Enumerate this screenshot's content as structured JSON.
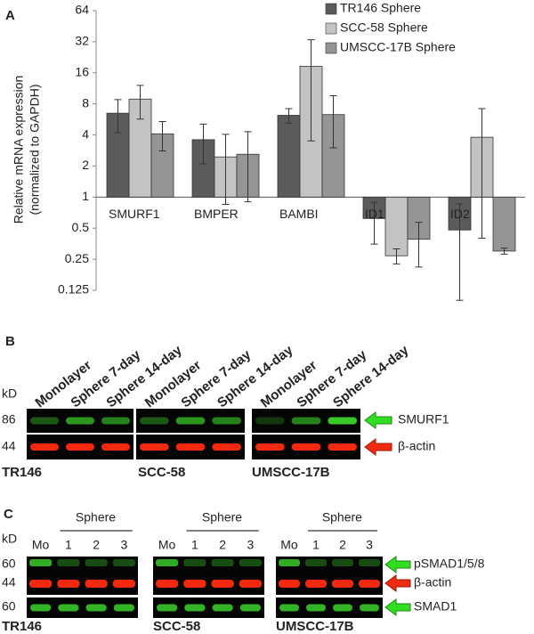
{
  "chart_data": {
    "type": "bar",
    "panel_label": "A",
    "ylabel": [
      "Relative mRNA expression",
      "(normalized to GAPDH)"
    ],
    "categories": [
      "SMURF1",
      "BMPER",
      "BAMBI",
      "ID1",
      "ID2"
    ],
    "series": [
      {
        "name": "TR146 Sphere",
        "color": "#5b5b5b",
        "values": [
          6.5,
          3.6,
          6.2,
          0.62,
          0.48
        ],
        "errors": [
          2.3,
          1.5,
          1.0,
          0.27,
          0.38
        ]
      },
      {
        "name": "SCC-58 Sphere",
        "color": "#c3c3c3",
        "values": [
          8.9,
          2.45,
          18.5,
          0.27,
          3.8
        ],
        "errors": [
          3.2,
          1.6,
          15,
          0.045,
          3.4
        ]
      },
      {
        "name": "UMSCC-17B Sphere",
        "color": "#959595",
        "values": [
          4.1,
          2.6,
          6.3,
          0.39,
          0.3
        ],
        "errors": [
          1.3,
          1.7,
          3.3,
          0.18,
          0.02
        ]
      }
    ],
    "log_scale": true,
    "log_base": 2,
    "ylim": [
      0.125,
      64
    ],
    "yticks": [
      0.125,
      0.25,
      0.5,
      1,
      2,
      4,
      8,
      16,
      32,
      64
    ],
    "grid": false,
    "legend": "top-right"
  },
  "panel_b": {
    "label": "B",
    "kd": "kD",
    "lanes": [
      "Monolayer",
      "Sphere 7-day",
      "Sphere 14-day"
    ],
    "markers": [
      "86",
      "44"
    ],
    "proteins": [
      "SMURF1",
      "β-actin"
    ],
    "cell_lines": [
      "TR146",
      "SCC-58",
      "UMSCC-17B"
    ]
  },
  "panel_c": {
    "label": "C",
    "kd": "kD",
    "sphere": "Sphere",
    "lanes": [
      "Mo",
      "1",
      "2",
      "3"
    ],
    "markers": [
      "60",
      "44",
      "60"
    ],
    "proteins": [
      "pSMAD1/5/8",
      "β-actin",
      "SMAD1"
    ],
    "cell_lines": [
      "TR146",
      "SCC-58",
      "UMSCC-17B"
    ]
  }
}
